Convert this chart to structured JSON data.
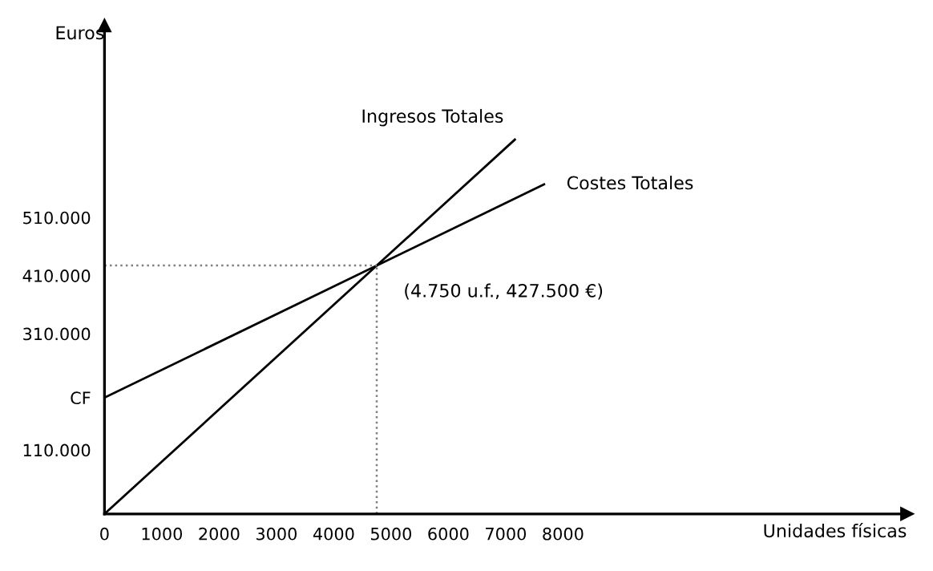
{
  "chart_data": {
    "type": "line",
    "xlabel": "Unidades físicas",
    "ylabel": "Euros",
    "series": [
      {
        "name": "Ingresos Totales",
        "color": "#000000",
        "x": [
          0,
          7160
        ],
        "values": [
          0,
          644000
        ]
      },
      {
        "name": "Costes Totales",
        "color": "#000000",
        "x": [
          0,
          7670
        ],
        "values": [
          200000,
          567000
        ]
      }
    ],
    "xlim": [
      0,
      14000
    ],
    "ylim": [
      0,
      840000
    ],
    "xticks": [
      0,
      1000,
      2000,
      3000,
      4000,
      5000,
      6000,
      7000,
      8000
    ],
    "yticks": [
      {
        "value": 110000,
        "label": "110.000"
      },
      {
        "value": 200000,
        "label": "CF"
      },
      {
        "value": 310000,
        "label": "310.000"
      },
      {
        "value": 410000,
        "label": "410.000"
      },
      {
        "value": 510000,
        "label": "510.000"
      }
    ],
    "ref_lines": [
      {
        "axis": "x",
        "value": 4750,
        "label": null,
        "color": "#808080",
        "line_style": "dotted"
      },
      {
        "axis": "y",
        "value": 427500,
        "label": null,
        "color": "#808080",
        "line_style": "dotted"
      }
    ],
    "annotations": [
      {
        "text": "(4.750 u.f., 427.500 €)",
        "x": 4750,
        "y": 427500
      }
    ],
    "grid": false,
    "legend": false,
    "marker": "none",
    "line_style": "solid"
  }
}
